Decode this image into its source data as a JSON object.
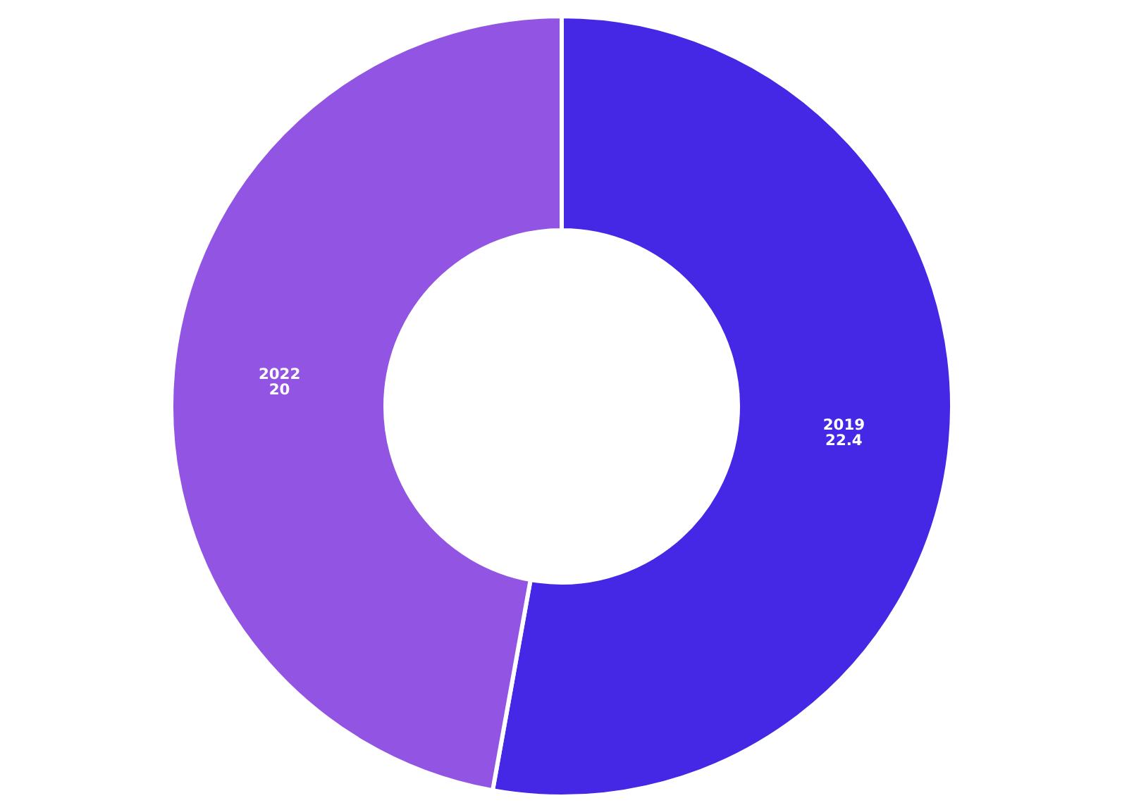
{
  "chart_data": {
    "type": "donut",
    "categories": [
      "2019",
      "2022"
    ],
    "values": [
      22.4,
      20
    ],
    "colors": [
      "#4428e6",
      "#9254e2"
    ],
    "data_labels": true
  }
}
